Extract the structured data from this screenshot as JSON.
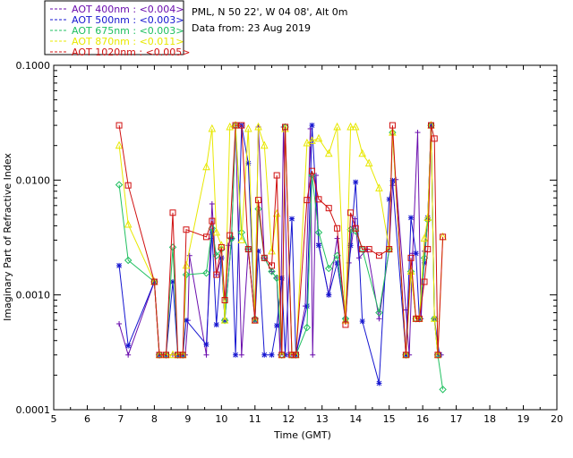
{
  "chart_data": {
    "type": "line",
    "xlabel": "Time (GMT)",
    "ylabel": "Imaginary Part of Refractive Index",
    "xlim": [
      5,
      20
    ],
    "ylim": [
      0.0001,
      0.1
    ],
    "yscale": "log",
    "x_ticks": [
      "5",
      "6",
      "7",
      "8",
      "9",
      "10",
      "11",
      "12",
      "13",
      "14",
      "15",
      "16",
      "17",
      "18",
      "19",
      "20"
    ],
    "y_ticks": [
      "0.0001",
      "0.0010",
      "0.0100",
      "0.1000"
    ],
    "info": {
      "location": "PML, N 50 22', W 04 08', Alt 0m",
      "date": "Data from: 23 Aug 2019"
    },
    "series": [
      {
        "name": "AOT  400nm : <0.004>",
        "color": "#6a0dad",
        "marker": "+",
        "points": [
          [
            6.95,
            0.00056
          ],
          [
            7.22,
            0.0003
          ],
          [
            8.0,
            0.0013
          ],
          [
            8.15,
            0.0003
          ],
          [
            8.35,
            0.0003
          ],
          [
            8.55,
            0.0003
          ],
          [
            8.62,
            0.0003
          ],
          [
            8.72,
            0.0003
          ],
          [
            8.85,
            0.0003
          ],
          [
            8.92,
            0.0003
          ],
          [
            9.0,
            0.0006
          ],
          [
            9.05,
            0.0022
          ],
          [
            9.55,
            0.0003
          ],
          [
            9.68,
            0.0031
          ],
          [
            9.72,
            0.0062
          ],
          [
            9.85,
            0.0015
          ],
          [
            10.0,
            0.0021
          ],
          [
            10.1,
            0.0006
          ],
          [
            10.2,
            0.0027
          ],
          [
            10.3,
            0.0031
          ],
          [
            10.42,
            0.03
          ],
          [
            10.6,
            0.0003
          ],
          [
            10.8,
            0.0025
          ],
          [
            11.0,
            0.0006
          ],
          [
            11.1,
            0.029
          ],
          [
            11.28,
            0.0021
          ],
          [
            11.5,
            0.0016
          ],
          [
            11.65,
            0.0014
          ],
          [
            11.75,
            0.0003
          ],
          [
            11.85,
            0.029
          ],
          [
            12.0,
            0.0003
          ],
          [
            12.1,
            0.0003
          ],
          [
            12.22,
            0.0003
          ],
          [
            12.5,
            0.0008
          ],
          [
            12.65,
            0.028
          ],
          [
            12.72,
            0.0003
          ],
          [
            12.82,
            0.011
          ],
          [
            12.9,
            0.0028
          ],
          [
            13.2,
            0.001
          ],
          [
            13.45,
            0.0031
          ],
          [
            13.7,
            0.0006
          ],
          [
            13.8,
            0.0019
          ],
          [
            13.98,
            0.0046
          ],
          [
            14.1,
            0.0021
          ],
          [
            14.35,
            0.0025
          ],
          [
            14.7,
            0.00062
          ],
          [
            15.0,
            0.0025
          ],
          [
            15.1,
            0.009
          ],
          [
            15.2,
            0.0101
          ],
          [
            15.5,
            0.00074
          ],
          [
            15.6,
            0.0003
          ],
          [
            15.7,
            0.0023
          ],
          [
            15.85,
            0.026
          ],
          [
            15.95,
            0.00062
          ],
          [
            16.05,
            0.0024
          ],
          [
            16.15,
            0.0047
          ],
          [
            16.25,
            0.03
          ],
          [
            16.35,
            0.00062
          ],
          [
            16.45,
            0.0003
          ],
          [
            16.55,
            0.0003
          ]
        ]
      },
      {
        "name": "AOT  500nm : <0.003>",
        "color": "#1515d0",
        "marker": "*",
        "points": [
          [
            6.95,
            0.0018
          ],
          [
            7.22,
            0.00036
          ],
          [
            8.0,
            0.0013
          ],
          [
            8.15,
            0.0003
          ],
          [
            8.35,
            0.0003
          ],
          [
            8.55,
            0.0013
          ],
          [
            8.7,
            0.0003
          ],
          [
            8.85,
            0.0003
          ],
          [
            8.95,
            0.0006
          ],
          [
            9.55,
            0.00037
          ],
          [
            9.72,
            0.0035
          ],
          [
            9.85,
            0.00055
          ],
          [
            10.0,
            0.0021
          ],
          [
            10.1,
            0.0006
          ],
          [
            10.3,
            0.0031
          ],
          [
            10.42,
            0.0003
          ],
          [
            10.6,
            0.03
          ],
          [
            10.8,
            0.014
          ],
          [
            11.0,
            0.0006
          ],
          [
            11.1,
            0.0024
          ],
          [
            11.28,
            0.0003
          ],
          [
            11.5,
            0.0003
          ],
          [
            11.65,
            0.00054
          ],
          [
            11.8,
            0.0014
          ],
          [
            11.9,
            0.0003
          ],
          [
            12.1,
            0.0046
          ],
          [
            12.22,
            0.0003
          ],
          [
            12.55,
            0.0008
          ],
          [
            12.7,
            0.03
          ],
          [
            12.9,
            0.0027
          ],
          [
            13.2,
            0.001
          ],
          [
            13.45,
            0.0019
          ],
          [
            13.7,
            0.0006
          ],
          [
            13.85,
            0.0027
          ],
          [
            14.0,
            0.0096
          ],
          [
            14.2,
            0.00059
          ],
          [
            14.7,
            0.00017
          ],
          [
            15.0,
            0.0068
          ],
          [
            15.1,
            0.0099
          ],
          [
            15.5,
            0.0003
          ],
          [
            15.65,
            0.0047
          ],
          [
            15.8,
            0.0023
          ],
          [
            15.9,
            0.00062
          ],
          [
            16.05,
            0.0019
          ],
          [
            16.15,
            0.0047
          ],
          [
            16.25,
            0.03
          ],
          [
            16.35,
            0.00062
          ],
          [
            16.5,
            0.0003
          ]
        ]
      },
      {
        "name": "AOT  675nm : <0.003>",
        "color": "#20c060",
        "marker": "diamond",
        "points": [
          [
            6.95,
            0.0091
          ],
          [
            7.22,
            0.002
          ],
          [
            8.0,
            0.0013
          ],
          [
            8.15,
            0.0003
          ],
          [
            8.35,
            0.0003
          ],
          [
            8.55,
            0.0026
          ],
          [
            8.7,
            0.0003
          ],
          [
            8.85,
            0.0003
          ],
          [
            8.95,
            0.0015
          ],
          [
            9.55,
            0.00155
          ],
          [
            9.72,
            0.0038
          ],
          [
            9.85,
            0.0022
          ],
          [
            10.0,
            0.0025
          ],
          [
            10.1,
            0.0006
          ],
          [
            10.3,
            0.0031
          ],
          [
            10.42,
            0.03
          ],
          [
            10.6,
            0.0035
          ],
          [
            10.8,
            0.0025
          ],
          [
            11.0,
            0.00062
          ],
          [
            11.1,
            0.0056
          ],
          [
            11.28,
            0.0021
          ],
          [
            11.5,
            0.0016
          ],
          [
            11.65,
            0.0014
          ],
          [
            11.8,
            0.0003
          ],
          [
            11.9,
            0.029
          ],
          [
            12.1,
            0.0003
          ],
          [
            12.22,
            0.0003
          ],
          [
            12.55,
            0.00052
          ],
          [
            12.7,
            0.011
          ],
          [
            12.9,
            0.0035
          ],
          [
            13.2,
            0.0017
          ],
          [
            13.45,
            0.0022
          ],
          [
            13.7,
            0.00062
          ],
          [
            13.85,
            0.0037
          ],
          [
            14.0,
            0.0036
          ],
          [
            14.2,
            0.0025
          ],
          [
            14.7,
            0.0007
          ],
          [
            15.0,
            0.0025
          ],
          [
            15.1,
            0.026
          ],
          [
            15.5,
            0.0003
          ],
          [
            15.65,
            0.0016
          ],
          [
            15.8,
            0.00062
          ],
          [
            15.9,
            0.00062
          ],
          [
            16.05,
            0.0021
          ],
          [
            16.15,
            0.0045
          ],
          [
            16.25,
            0.03
          ],
          [
            16.35,
            0.00062
          ],
          [
            16.45,
            0.0003
          ],
          [
            16.6,
            0.00015
          ]
        ]
      },
      {
        "name": "AOT  870nm : <0.011>",
        "color": "#e8e800",
        "marker": "triangle",
        "points": [
          [
            6.95,
            0.02
          ],
          [
            7.22,
            0.0041
          ],
          [
            8.0,
            0.0013
          ],
          [
            8.15,
            0.0003
          ],
          [
            8.35,
            0.0003
          ],
          [
            8.55,
            0.0003
          ],
          [
            8.7,
            0.0003
          ],
          [
            8.85,
            0.0003
          ],
          [
            8.95,
            0.0018
          ],
          [
            9.55,
            0.013
          ],
          [
            9.72,
            0.028
          ],
          [
            9.85,
            0.0035
          ],
          [
            10.0,
            0.0027
          ],
          [
            10.1,
            0.0006
          ],
          [
            10.25,
            0.029
          ],
          [
            10.42,
            0.03
          ],
          [
            10.6,
            0.003
          ],
          [
            10.8,
            0.028
          ],
          [
            11.0,
            0.0006
          ],
          [
            11.1,
            0.029
          ],
          [
            11.28,
            0.02
          ],
          [
            11.5,
            0.0024
          ],
          [
            11.65,
            0.0051
          ],
          [
            11.8,
            0.0003
          ],
          [
            11.9,
            0.028
          ],
          [
            12.1,
            0.0003
          ],
          [
            12.22,
            0.0003
          ],
          [
            12.55,
            0.021
          ],
          [
            12.7,
            0.022
          ],
          [
            12.9,
            0.023
          ],
          [
            13.2,
            0.017
          ],
          [
            13.45,
            0.029
          ],
          [
            13.7,
            0.0006
          ],
          [
            13.85,
            0.029
          ],
          [
            14.0,
            0.029
          ],
          [
            14.2,
            0.017
          ],
          [
            14.4,
            0.014
          ],
          [
            14.7,
            0.0085
          ],
          [
            15.0,
            0.0025
          ],
          [
            15.1,
            0.026
          ],
          [
            15.5,
            0.0003
          ],
          [
            15.65,
            0.0016
          ],
          [
            15.8,
            0.00062
          ],
          [
            15.9,
            0.00062
          ],
          [
            16.05,
            0.0031
          ],
          [
            16.15,
            0.0047
          ],
          [
            16.25,
            0.03
          ],
          [
            16.35,
            0.00062
          ],
          [
            16.45,
            0.0003
          ],
          [
            16.6,
            0.0032
          ]
        ]
      },
      {
        "name": "AOT 1020nm : <0.005>",
        "color": "#d01010",
        "marker": "square",
        "points": [
          [
            6.95,
            0.03
          ],
          [
            7.22,
            0.009
          ],
          [
            8.0,
            0.0013
          ],
          [
            8.15,
            0.0003
          ],
          [
            8.35,
            0.0003
          ],
          [
            8.55,
            0.0052
          ],
          [
            8.7,
            0.0003
          ],
          [
            8.85,
            0.0003
          ],
          [
            8.95,
            0.0037
          ],
          [
            9.55,
            0.0032
          ],
          [
            9.72,
            0.0044
          ],
          [
            9.85,
            0.0015
          ],
          [
            10.0,
            0.0026
          ],
          [
            10.1,
            0.0009
          ],
          [
            10.25,
            0.0033
          ],
          [
            10.42,
            0.03
          ],
          [
            10.6,
            0.03
          ],
          [
            10.8,
            0.0025
          ],
          [
            11.0,
            0.0006
          ],
          [
            11.1,
            0.0067
          ],
          [
            11.28,
            0.0021
          ],
          [
            11.5,
            0.0018
          ],
          [
            11.65,
            0.011
          ],
          [
            11.8,
            0.0003
          ],
          [
            11.9,
            0.029
          ],
          [
            12.1,
            0.0003
          ],
          [
            12.22,
            0.0003
          ],
          [
            12.55,
            0.0067
          ],
          [
            12.7,
            0.012
          ],
          [
            12.9,
            0.0068
          ],
          [
            13.2,
            0.0057
          ],
          [
            13.45,
            0.0038
          ],
          [
            13.7,
            0.00055
          ],
          [
            13.85,
            0.0052
          ],
          [
            14.0,
            0.0038
          ],
          [
            14.2,
            0.0025
          ],
          [
            14.4,
            0.0025
          ],
          [
            14.7,
            0.0022
          ],
          [
            15.0,
            0.0025
          ],
          [
            15.1,
            0.03
          ],
          [
            15.5,
            0.0003
          ],
          [
            15.65,
            0.0021
          ],
          [
            15.8,
            0.00062
          ],
          [
            15.9,
            0.00062
          ],
          [
            16.05,
            0.0013
          ],
          [
            16.15,
            0.0025
          ],
          [
            16.25,
            0.03
          ],
          [
            16.35,
            0.023
          ],
          [
            16.45,
            0.0003
          ],
          [
            16.6,
            0.0032
          ]
        ]
      }
    ]
  }
}
